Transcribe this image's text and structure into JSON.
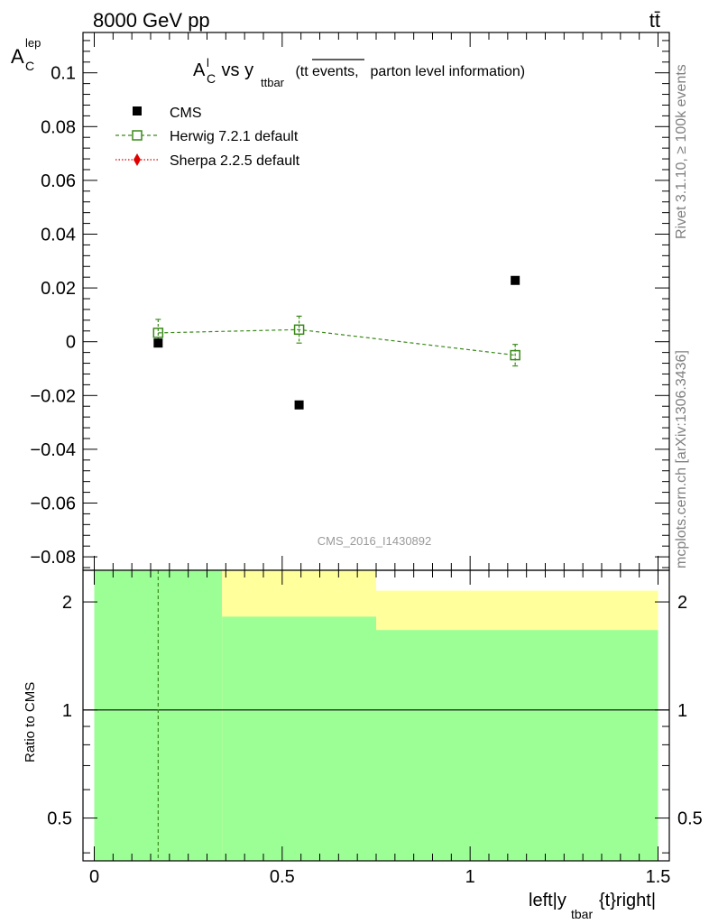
{
  "header": {
    "energy_label": "8000 GeV pp",
    "process_label": "tt̄"
  },
  "side_labels": {
    "rivet": "Rivet 3.1.10, ≥ 100k events",
    "mcplots": "mcplots.cern.ch [arXiv:1306.3436]"
  },
  "analysis_id": "CMS_2016_I1430892",
  "colors": {
    "cms": "#000000",
    "herwig": "#3a8a1a",
    "sherpa": "#e00000",
    "band_green": "#9cff96",
    "band_yellow": "#ffff9c"
  },
  "chart_data": [
    {
      "type": "line",
      "title_parts": {
        "a": "A",
        "a_sup": "l",
        "a_sub": "C",
        "vs": " vs y",
        "y_sub": "ttbar",
        "paren_open": " (tt",
        "overlined": "events,",
        "rest": " parton level information)"
      },
      "ylabel_main": "A",
      "ylabel_sup": "lep",
      "ylabel_sub": "C",
      "ylim": [
        -0.085,
        0.115
      ],
      "xlim": [
        -0.03,
        1.53
      ],
      "yticks": [
        -0.08,
        -0.06,
        -0.04,
        -0.02,
        0,
        0.02,
        0.04,
        0.06,
        0.08,
        0.1
      ],
      "ytick_labels": [
        "−0.08",
        "−0.06",
        "−0.04",
        "−0.02",
        "0",
        "0.02",
        "0.04",
        "0.06",
        "0.08",
        "0.1"
      ],
      "legend_position": "top-left",
      "series": [
        {
          "name": "CMS",
          "marker": "filled-square",
          "x": [
            0.17,
            0.545,
            1.12
          ],
          "y": [
            -0.0005,
            -0.0235,
            0.0228
          ],
          "yerr": [
            0,
            0,
            0
          ]
        },
        {
          "name": "Herwig 7.2.1 default",
          "marker": "open-square",
          "line": "dashed",
          "x": [
            0.17,
            0.545,
            1.12
          ],
          "y": [
            0.0033,
            0.0045,
            -0.005
          ],
          "yerr": [
            0.005,
            0.005,
            0.004
          ]
        },
        {
          "name": "Sherpa 2.2.5 default",
          "marker": "diamond",
          "line": "dotted",
          "x": [],
          "y": []
        }
      ]
    },
    {
      "type": "area",
      "ylabel": "Ratio to CMS",
      "xlabel": "left|y_{tbar}{t}right|",
      "xlabel_parts": {
        "a": "left|y",
        "sub": "tbar",
        "b": "{t}right|"
      },
      "log_y": true,
      "ylim": [
        0.38,
        2.45
      ],
      "xlim": [
        -0.03,
        1.53
      ],
      "yticks": [
        0.5,
        1,
        2
      ],
      "ytick_labels": [
        "0.5",
        "1",
        "2"
      ],
      "xticks": [
        0,
        0.5,
        1,
        1.5
      ],
      "xtick_labels": [
        "0",
        "0.5",
        "1",
        "1.5"
      ],
      "reference_line": 1,
      "bins": [
        {
          "x_lo": 0.0,
          "x_hi": 0.34,
          "green_hi": 2.45,
          "yellow_hi": 2.45
        },
        {
          "x_lo": 0.34,
          "x_hi": 0.75,
          "green_hi": 1.82,
          "yellow_hi": 2.45
        },
        {
          "x_lo": 0.75,
          "x_hi": 1.5,
          "green_hi": 1.67,
          "yellow_hi": 2.15
        }
      ],
      "herwig_ratio": {
        "x": [
          0.17
        ],
        "y": [
          1.0
        ],
        "note_line": "dashed-vertical"
      }
    }
  ]
}
